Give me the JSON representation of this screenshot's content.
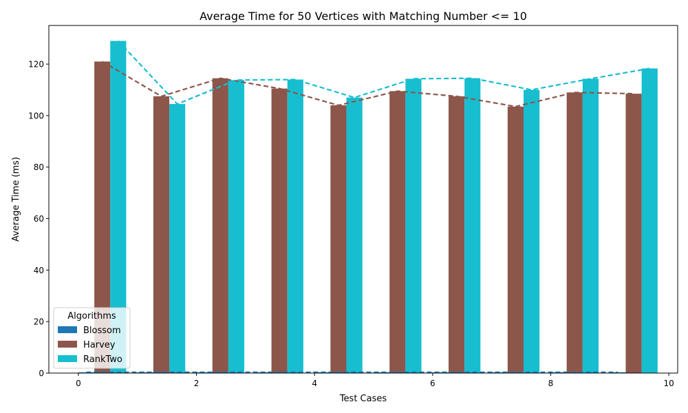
{
  "chart_data": {
    "type": "bar",
    "title": "Average Time for 50 Vertices with Matching Number <= 10",
    "xlabel": "Test Cases",
    "ylabel": "Average Time (ms)",
    "x": [
      0,
      1,
      2,
      3,
      4,
      5,
      6,
      7,
      8,
      9
    ],
    "xlim": [
      -0.5,
      10.15
    ],
    "ylim": [
      0,
      135
    ],
    "xticks": [
      0,
      2,
      4,
      6,
      8,
      10
    ],
    "yticks": [
      0,
      20,
      40,
      60,
      80,
      100,
      120
    ],
    "bar_width": 0.27,
    "grid": false,
    "legend": {
      "title": "Algorithms",
      "position": "lower-left"
    },
    "trend_lines": "dashed line through bar tops for each series",
    "series": [
      {
        "name": "Blossom",
        "color": "#1f77b4",
        "offset": 0,
        "values": [
          0.3,
          0.3,
          0.3,
          0.3,
          0.3,
          0.3,
          0.3,
          0.3,
          0.3,
          0.3
        ]
      },
      {
        "name": "Harvey",
        "color": "#8c564b",
        "offset": 1,
        "values": [
          121,
          107.5,
          114.5,
          110.5,
          104,
          109.5,
          107.5,
          103.5,
          109,
          108.5
        ]
      },
      {
        "name": "RankTwo",
        "color": "#17becf",
        "offset": 2,
        "values": [
          129,
          104.5,
          113.8,
          114,
          107,
          114.3,
          114.5,
          110,
          114.3,
          118.3
        ]
      }
    ]
  }
}
